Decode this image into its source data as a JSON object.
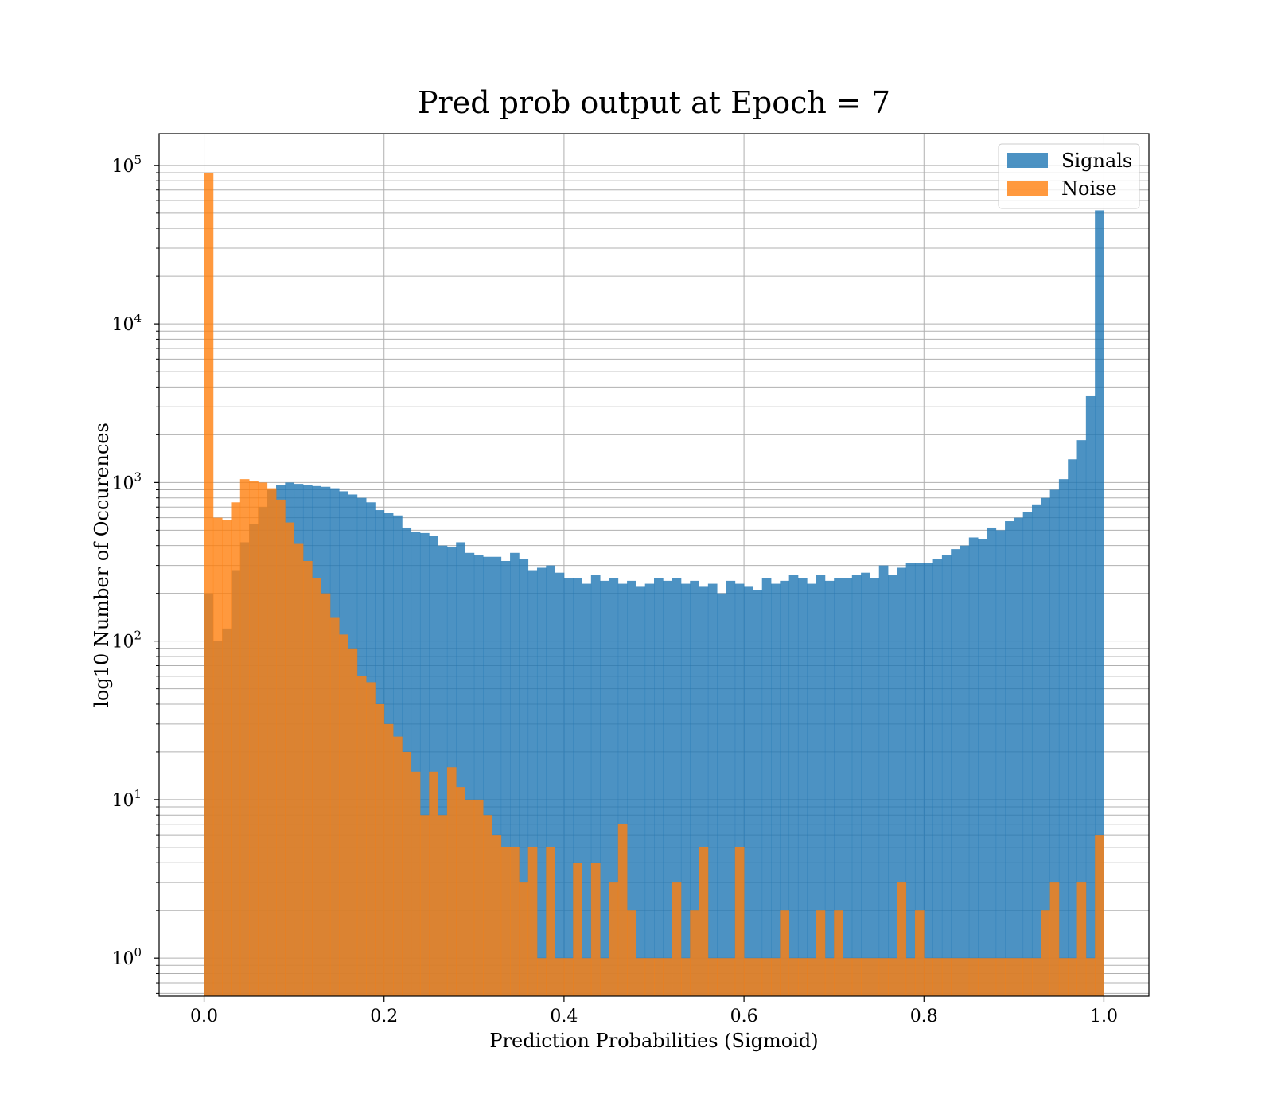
{
  "chart_data": {
    "type": "bar",
    "title": "Pred prob output at Epoch = 7",
    "xlabel": "Prediction Probabilities (Sigmoid)",
    "ylabel": "log10 Number of Occurences",
    "xlim": [
      -0.05,
      1.05
    ],
    "ylim_log10": [
      -0.24,
      5.2
    ],
    "y_scale": "log",
    "grid": true,
    "legend_position": "top-right",
    "x_ticks": [
      {
        "value": 0.0,
        "label": "0.0"
      },
      {
        "value": 0.2,
        "label": "0.2"
      },
      {
        "value": 0.4,
        "label": "0.4"
      },
      {
        "value": 0.6,
        "label": "0.6"
      },
      {
        "value": 0.8,
        "label": "0.8"
      },
      {
        "value": 1.0,
        "label": "1.0"
      }
    ],
    "y_ticks": [
      {
        "exp": 0,
        "base": "10",
        "sup": "0"
      },
      {
        "exp": 1,
        "base": "10",
        "sup": "1"
      },
      {
        "exp": 2,
        "base": "10",
        "sup": "2"
      },
      {
        "exp": 3,
        "base": "10",
        "sup": "3"
      },
      {
        "exp": 4,
        "base": "10",
        "sup": "4"
      },
      {
        "exp": 5,
        "base": "10",
        "sup": "5"
      }
    ],
    "bin_edges": {
      "start": 0.0,
      "end": 1.0,
      "count": 100
    },
    "series": [
      {
        "name": "Signals",
        "color": "#1f77b4",
        "opacity": 0.8,
        "values": [
          200,
          100,
          120,
          280,
          420,
          550,
          700,
          900,
          960,
          1000,
          980,
          960,
          950,
          940,
          920,
          880,
          840,
          800,
          750,
          670,
          640,
          620,
          520,
          490,
          480,
          460,
          400,
          390,
          420,
          360,
          350,
          340,
          340,
          320,
          360,
          330,
          280,
          290,
          300,
          270,
          250,
          250,
          230,
          260,
          240,
          250,
          230,
          240,
          220,
          230,
          250,
          240,
          250,
          230,
          240,
          220,
          230,
          200,
          240,
          230,
          220,
          210,
          250,
          230,
          240,
          260,
          250,
          230,
          260,
          240,
          250,
          250,
          260,
          270,
          250,
          300,
          260,
          290,
          310,
          310,
          310,
          330,
          350,
          380,
          400,
          450,
          440,
          520,
          500,
          570,
          600,
          650,
          720,
          800,
          900,
          1050,
          1400,
          1850,
          3500,
          52000
        ]
      },
      {
        "name": "Noise",
        "color": "#ff7f0e",
        "opacity": 0.8,
        "values": [
          90000,
          600,
          580,
          750,
          1050,
          1020,
          1000,
          920,
          780,
          560,
          410,
          320,
          250,
          200,
          140,
          110,
          90,
          60,
          55,
          40,
          30,
          25,
          20,
          15,
          8,
          15,
          8,
          16,
          12,
          10,
          10,
          8,
          6,
          5,
          5,
          3,
          5,
          1,
          5,
          1,
          1,
          4,
          1,
          4,
          1,
          3,
          7,
          2,
          1,
          1,
          1,
          1,
          3,
          1,
          2,
          5,
          1,
          1,
          1,
          5,
          1,
          1,
          1,
          1,
          2,
          1,
          1,
          1,
          2,
          1,
          2,
          1,
          1,
          1,
          1,
          1,
          1,
          3,
          1,
          2,
          1,
          1,
          1,
          1,
          1,
          1,
          1,
          1,
          1,
          1,
          1,
          1,
          1,
          2,
          3,
          1,
          1,
          3,
          1,
          6
        ]
      }
    ]
  }
}
